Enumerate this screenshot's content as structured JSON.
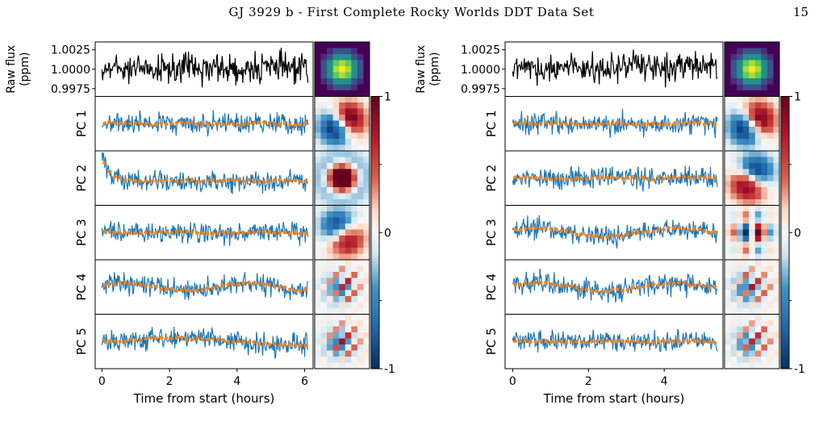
{
  "page": {
    "running_title": "GJ 3929 b - First Complete Rocky Worlds DDT Data Set",
    "page_number": "15"
  },
  "figures": [
    {
      "raw_panel": {
        "ylabel_line1": "Raw flux",
        "ylabel_line2": "(ppm)",
        "yticks": [
          "1.0025",
          "1.0000",
          "0.9975"
        ]
      },
      "pc_labels": [
        "PC 1",
        "PC 2",
        "PC 3",
        "PC 4",
        "PC 5"
      ],
      "xlabel": "Time from start (hours)",
      "xticks": [
        "0",
        "2",
        "4",
        "6"
      ],
      "colorbar_ticks": [
        "1",
        "0",
        "-1"
      ]
    },
    {
      "raw_panel": {
        "ylabel_line1": "Raw flux",
        "ylabel_line2": "(ppm)",
        "yticks": [
          "1.0025",
          "1.0000",
          "0.9975"
        ]
      },
      "pc_labels": [
        "PC 1",
        "PC 2",
        "PC 3",
        "PC 4",
        "PC 5"
      ],
      "xlabel": "Time from start (hours)",
      "xticks": [
        "0",
        "2",
        "4"
      ],
      "colorbar_ticks": [
        "1",
        "0",
        "-1"
      ]
    }
  ],
  "chart_data": [
    {
      "type": "line",
      "panel": "raw flux",
      "xlim": [
        -0.2,
        6.25
      ],
      "ylim": [
        0.9965,
        1.0035
      ],
      "x_range_hours": [
        0,
        6.1
      ],
      "y_center": 0.99995,
      "y_spread": 0.0015,
      "pc_trend": [
        {
          "name": "PC 1",
          "shape": "flat"
        },
        {
          "name": "PC 2",
          "shape": "exponential ramp"
        },
        {
          "name": "PC 3",
          "shape": "flat"
        },
        {
          "name": "PC 4",
          "shape": "slow wave"
        },
        {
          "name": "PC 5",
          "shape": "gentle hump"
        }
      ],
      "line_color": "#1f77b4",
      "binned_color": "#ff7f0e",
      "raw_color": "#000000"
    },
    {
      "type": "line",
      "panel": "raw flux",
      "xlim": [
        -0.2,
        5.55
      ],
      "ylim": [
        0.9965,
        1.0035
      ],
      "x_range_hours": [
        0,
        5.4
      ],
      "y_center": 0.99995,
      "y_spread": 0.0015,
      "pc_trend": [
        {
          "name": "PC 1",
          "shape": "flat"
        },
        {
          "name": "PC 2",
          "shape": "flat"
        },
        {
          "name": "PC 3",
          "shape": "slow wave"
        },
        {
          "name": "PC 4",
          "shape": "slow wave"
        },
        {
          "name": "PC 5",
          "shape": "flat"
        }
      ],
      "line_color": "#1f77b4",
      "binned_color": "#ff7f0e",
      "raw_color": "#000000"
    }
  ]
}
